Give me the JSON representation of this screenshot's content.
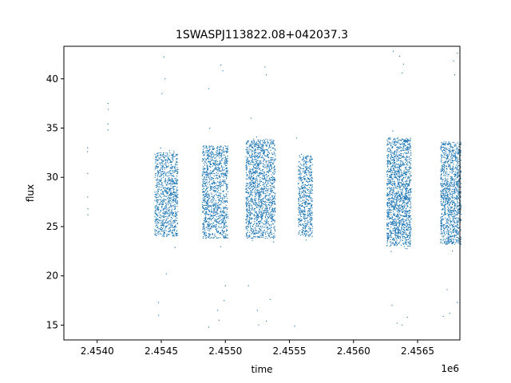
{
  "chart_data": {
    "type": "scatter",
    "title": "1SWASPJ113822.08+042037.3",
    "xlabel": "time",
    "ylabel": "flux",
    "x_offset_label": "1e6",
    "xlim": [
      2453740,
      2456830
    ],
    "ylim": [
      13.5,
      43.3
    ],
    "x_ticks": [
      2454000,
      2454500,
      2455000,
      2455500,
      2456000,
      2456500
    ],
    "x_tick_labels": [
      "2.4540",
      "2.4545",
      "2.4550",
      "2.4555",
      "2.4560",
      "2.4565"
    ],
    "y_ticks": [
      15,
      20,
      25,
      30,
      35,
      40
    ],
    "y_tick_labels": [
      "15",
      "20",
      "25",
      "30",
      "35",
      "40"
    ],
    "grid": false,
    "marker_color": "#1f77b4",
    "series": [
      {
        "values": [
          {
            "x": 2453925,
            "y": 33.0
          },
          {
            "x": 2453925,
            "y": 32.6
          },
          {
            "x": 2453926,
            "y": 30.4
          },
          {
            "x": 2453926,
            "y": 28.0
          },
          {
            "x": 2453927,
            "y": 26.8
          },
          {
            "x": 2453927,
            "y": 26.2
          },
          {
            "x": 2454085,
            "y": 37.5
          },
          {
            "x": 2454086,
            "y": 36.9
          },
          {
            "x": 2454084,
            "y": 35.4
          },
          {
            "x": 2454085,
            "y": 34.8
          },
          {
            "x": 2454520,
            "y": 42.2
          },
          {
            "x": 2454505,
            "y": 38.5
          },
          {
            "x": 2454530,
            "y": 40.0
          },
          {
            "x": 2454480,
            "y": 16.0
          },
          {
            "x": 2454478,
            "y": 17.3
          },
          {
            "x": 2454540,
            "y": 20.2
          },
          {
            "x": 2454965,
            "y": 41.4
          },
          {
            "x": 2454980,
            "y": 40.8
          },
          {
            "x": 2454870,
            "y": 39.0
          },
          {
            "x": 2454950,
            "y": 15.5
          },
          {
            "x": 2454940,
            "y": 16.5
          },
          {
            "x": 2454870,
            "y": 14.8
          },
          {
            "x": 2454990,
            "y": 17.5
          },
          {
            "x": 2455000,
            "y": 19.0
          },
          {
            "x": 2455310,
            "y": 41.2
          },
          {
            "x": 2455320,
            "y": 40.4
          },
          {
            "x": 2455200,
            "y": 36.0
          },
          {
            "x": 2455260,
            "y": 15.0
          },
          {
            "x": 2455320,
            "y": 15.4
          },
          {
            "x": 2455250,
            "y": 16.5
          },
          {
            "x": 2455350,
            "y": 17.6
          },
          {
            "x": 2455180,
            "y": 19.0
          },
          {
            "x": 2455540,
            "y": 14.9
          },
          {
            "x": 2455555,
            "y": 34.0
          },
          {
            "x": 2456310,
            "y": 42.8
          },
          {
            "x": 2456360,
            "y": 42.3
          },
          {
            "x": 2456390,
            "y": 41.5
          },
          {
            "x": 2456380,
            "y": 40.6
          },
          {
            "x": 2456340,
            "y": 15.2
          },
          {
            "x": 2456380,
            "y": 15.0
          },
          {
            "x": 2456420,
            "y": 15.8
          },
          {
            "x": 2456300,
            "y": 17.0
          },
          {
            "x": 2456810,
            "y": 42.6
          },
          {
            "x": 2456790,
            "y": 40.4
          },
          {
            "x": 2456780,
            "y": 41.8
          },
          {
            "x": 2456810,
            "y": 17.3
          },
          {
            "x": 2456700,
            "y": 15.9
          },
          {
            "x": 2456750,
            "y": 16.2
          },
          {
            "x": 2456730,
            "y": 18.6
          }
        ]
      }
    ],
    "observing_seasons": [
      {
        "x_range": [
          2454450,
          2454630
        ],
        "core_range": [
          24.0,
          32.5
        ],
        "spread": [
          22.4,
          35.8
        ],
        "points": 900
      },
      {
        "x_range": [
          2454820,
          2455020
        ],
        "core_range": [
          23.8,
          33.2
        ],
        "spread": [
          20.0,
          36.5
        ],
        "points": 1100
      },
      {
        "x_range": [
          2455160,
          2455390
        ],
        "core_range": [
          23.8,
          33.8
        ],
        "spread": [
          18.5,
          37.0
        ],
        "points": 1400
      },
      {
        "x_range": [
          2455570,
          2455680
        ],
        "core_range": [
          24.0,
          32.2
        ],
        "spread": [
          23.4,
          32.6
        ],
        "points": 550
      },
      {
        "x_range": [
          2456260,
          2456450
        ],
        "core_range": [
          23.0,
          34.0
        ],
        "spread": [
          18.0,
          38.3
        ],
        "points": 1500
      },
      {
        "x_range": [
          2456680,
          2456840
        ],
        "core_range": [
          23.2,
          33.6
        ],
        "spread": [
          19.5,
          36.7
        ],
        "points": 1100
      }
    ]
  }
}
